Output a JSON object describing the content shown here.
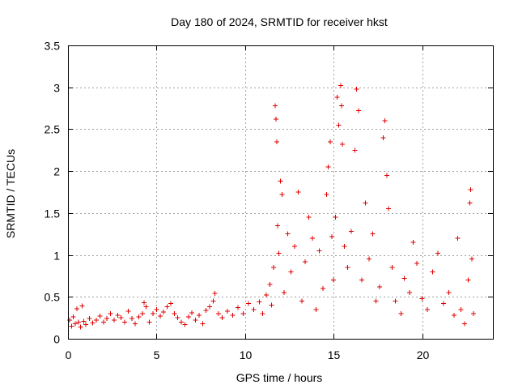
{
  "chart_data": {
    "type": "scatter",
    "title": "Day 180 of 2024, SRMTID for receiver hkst",
    "xlabel": "GPS time / hours",
    "ylabel": "SRMTID / TECUs",
    "xlim": [
      0,
      24
    ],
    "ylim": [
      0,
      3.5
    ],
    "xticks": [
      0,
      5,
      10,
      15,
      20
    ],
    "xtick_labels": [
      "0",
      "5",
      "10",
      "15",
      "20"
    ],
    "yticks": [
      0,
      0.5,
      1,
      1.5,
      2,
      2.5,
      3,
      3.5
    ],
    "ytick_labels": [
      "0",
      "0.5",
      "1",
      "1.5",
      "2",
      "2.5",
      "3",
      "3.5"
    ],
    "grid": true,
    "marker": "+",
    "color": "#e00000",
    "series": [
      {
        "name": "SRMTID",
        "points": [
          [
            0.1,
            0.22
          ],
          [
            0.2,
            0.15
          ],
          [
            0.3,
            0.26
          ],
          [
            0.4,
            0.18
          ],
          [
            0.5,
            0.36
          ],
          [
            0.6,
            0.2
          ],
          [
            0.7,
            0.14
          ],
          [
            0.8,
            0.39
          ],
          [
            0.9,
            0.21
          ],
          [
            1.0,
            0.17
          ],
          [
            1.2,
            0.24
          ],
          [
            1.4,
            0.19
          ],
          [
            1.6,
            0.22
          ],
          [
            1.8,
            0.27
          ],
          [
            2.0,
            0.2
          ],
          [
            2.2,
            0.24
          ],
          [
            2.4,
            0.3
          ],
          [
            2.6,
            0.22
          ],
          [
            2.8,
            0.28
          ],
          [
            3.0,
            0.25
          ],
          [
            3.2,
            0.2
          ],
          [
            3.4,
            0.33
          ],
          [
            3.6,
            0.24
          ],
          [
            3.8,
            0.18
          ],
          [
            4.0,
            0.26
          ],
          [
            4.2,
            0.3
          ],
          [
            4.3,
            0.43
          ],
          [
            4.4,
            0.38
          ],
          [
            4.6,
            0.2
          ],
          [
            4.8,
            0.3
          ],
          [
            5.0,
            0.35
          ],
          [
            5.2,
            0.27
          ],
          [
            5.4,
            0.32
          ],
          [
            5.6,
            0.38
          ],
          [
            5.8,
            0.42
          ],
          [
            6.0,
            0.3
          ],
          [
            6.2,
            0.25
          ],
          [
            6.4,
            0.2
          ],
          [
            6.6,
            0.17
          ],
          [
            6.8,
            0.26
          ],
          [
            7.0,
            0.31
          ],
          [
            7.2,
            0.22
          ],
          [
            7.4,
            0.28
          ],
          [
            7.6,
            0.18
          ],
          [
            7.8,
            0.34
          ],
          [
            8.0,
            0.38
          ],
          [
            8.2,
            0.45
          ],
          [
            8.3,
            0.54
          ],
          [
            8.5,
            0.3
          ],
          [
            8.7,
            0.25
          ],
          [
            9.0,
            0.33
          ],
          [
            9.3,
            0.28
          ],
          [
            9.6,
            0.37
          ],
          [
            9.9,
            0.3
          ],
          [
            10.2,
            0.42
          ],
          [
            10.5,
            0.35
          ],
          [
            10.8,
            0.44
          ],
          [
            11.0,
            0.3
          ],
          [
            11.2,
            0.52
          ],
          [
            11.4,
            0.65
          ],
          [
            11.5,
            0.4
          ],
          [
            11.6,
            0.85
          ],
          [
            11.7,
            2.78
          ],
          [
            11.75,
            2.62
          ],
          [
            11.8,
            2.35
          ],
          [
            11.85,
            1.35
          ],
          [
            11.9,
            1.02
          ],
          [
            12.0,
            1.88
          ],
          [
            12.1,
            1.72
          ],
          [
            12.2,
            0.55
          ],
          [
            12.4,
            1.25
          ],
          [
            12.6,
            0.8
          ],
          [
            12.8,
            1.1
          ],
          [
            13.0,
            1.75
          ],
          [
            13.2,
            0.45
          ],
          [
            13.4,
            0.92
          ],
          [
            13.6,
            1.45
          ],
          [
            13.8,
            1.2
          ],
          [
            14.0,
            0.35
          ],
          [
            14.2,
            1.05
          ],
          [
            14.4,
            0.6
          ],
          [
            14.6,
            1.72
          ],
          [
            14.7,
            2.05
          ],
          [
            14.8,
            2.35
          ],
          [
            14.9,
            1.22
          ],
          [
            15.0,
            0.7
          ],
          [
            15.1,
            1.45
          ],
          [
            15.2,
            2.88
          ],
          [
            15.3,
            2.55
          ],
          [
            15.4,
            3.02
          ],
          [
            15.45,
            2.78
          ],
          [
            15.5,
            2.32
          ],
          [
            15.6,
            1.1
          ],
          [
            15.8,
            0.85
          ],
          [
            16.0,
            1.28
          ],
          [
            16.2,
            2.25
          ],
          [
            16.3,
            2.98
          ],
          [
            16.4,
            2.72
          ],
          [
            16.6,
            0.7
          ],
          [
            16.8,
            1.62
          ],
          [
            17.0,
            0.95
          ],
          [
            17.2,
            1.25
          ],
          [
            17.4,
            0.45
          ],
          [
            17.6,
            0.62
          ],
          [
            17.8,
            2.4
          ],
          [
            17.9,
            2.6
          ],
          [
            18.0,
            1.95
          ],
          [
            18.1,
            1.55
          ],
          [
            18.3,
            0.85
          ],
          [
            18.5,
            0.45
          ],
          [
            18.8,
            0.3
          ],
          [
            19.0,
            0.72
          ],
          [
            19.3,
            0.55
          ],
          [
            19.5,
            1.15
          ],
          [
            19.7,
            0.9
          ],
          [
            20.0,
            0.48
          ],
          [
            20.3,
            0.35
          ],
          [
            20.6,
            0.8
          ],
          [
            20.9,
            1.02
          ],
          [
            21.2,
            0.42
          ],
          [
            21.5,
            0.55
          ],
          [
            21.8,
            0.28
          ],
          [
            22.0,
            1.2
          ],
          [
            22.2,
            0.35
          ],
          [
            22.4,
            0.18
          ],
          [
            22.6,
            0.7
          ],
          [
            22.7,
            1.62
          ],
          [
            22.75,
            1.78
          ],
          [
            22.8,
            0.95
          ],
          [
            22.9,
            0.3
          ]
        ]
      }
    ]
  }
}
